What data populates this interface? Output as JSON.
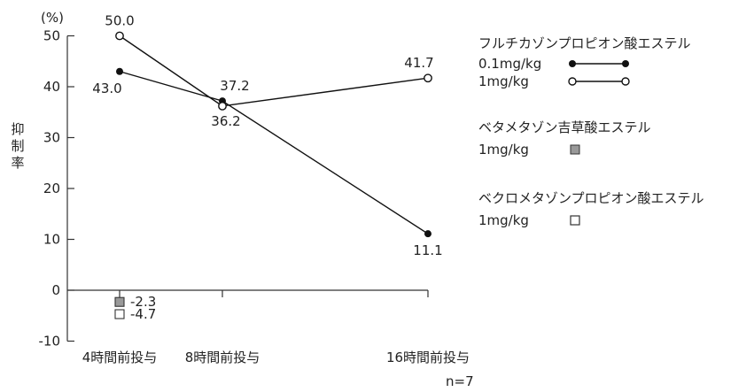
{
  "chart_data": {
    "type": "line",
    "ylabel": "抑制率",
    "yunit": "(%)",
    "ylim": [
      -10,
      50
    ],
    "yticks": [
      -10,
      0,
      10,
      20,
      30,
      40,
      50
    ],
    "categories": [
      "4時間前投与",
      "8時間前投与",
      "16時間前投与"
    ],
    "x_positions": [
      4,
      8,
      16
    ],
    "n_note": "n=7",
    "series": [
      {
        "name": "フルチカゾンプロピオン酸エステル 0.1mg/kg",
        "marker": "filled-circle",
        "color": "#111111",
        "values": [
          43.0,
          37.2,
          11.1
        ],
        "labels": [
          "43.0",
          "37.2",
          "11.1"
        ]
      },
      {
        "name": "フルチカゾンプロピオン酸エステル 1mg/kg",
        "marker": "open-circle",
        "color": "#111111",
        "values": [
          50.0,
          36.2,
          41.7
        ],
        "labels": [
          "50.0",
          "36.2",
          "41.7"
        ]
      }
    ],
    "points": [
      {
        "name": "ベタメタゾン吉草酸エステル 1mg/kg",
        "marker": "gray-square",
        "color": "#999999",
        "x": 4,
        "value": -2.3,
        "label": "-2.3"
      },
      {
        "name": "ベクロメタゾンプロピオン酸エステル 1mg/kg",
        "marker": "open-square",
        "color": "#ffffff",
        "x": 4,
        "value": -4.7,
        "label": "-4.7"
      }
    ],
    "legend": {
      "placement": "right",
      "groups": [
        {
          "title": "フルチカゾンプロピオン酸エステル",
          "items": [
            {
              "dose": "0.1mg/kg",
              "marker": "filled-line"
            },
            {
              "dose": "1mg/kg",
              "marker": "open-line"
            }
          ]
        },
        {
          "title": "ベタメタゾン吉草酸エステル",
          "items": [
            {
              "dose": "1mg/kg",
              "marker": "gray-square"
            }
          ]
        },
        {
          "title": "ベクロメタゾンプロピオン酸エステル",
          "items": [
            {
              "dose": "1mg/kg",
              "marker": "open-square"
            }
          ]
        }
      ]
    }
  }
}
